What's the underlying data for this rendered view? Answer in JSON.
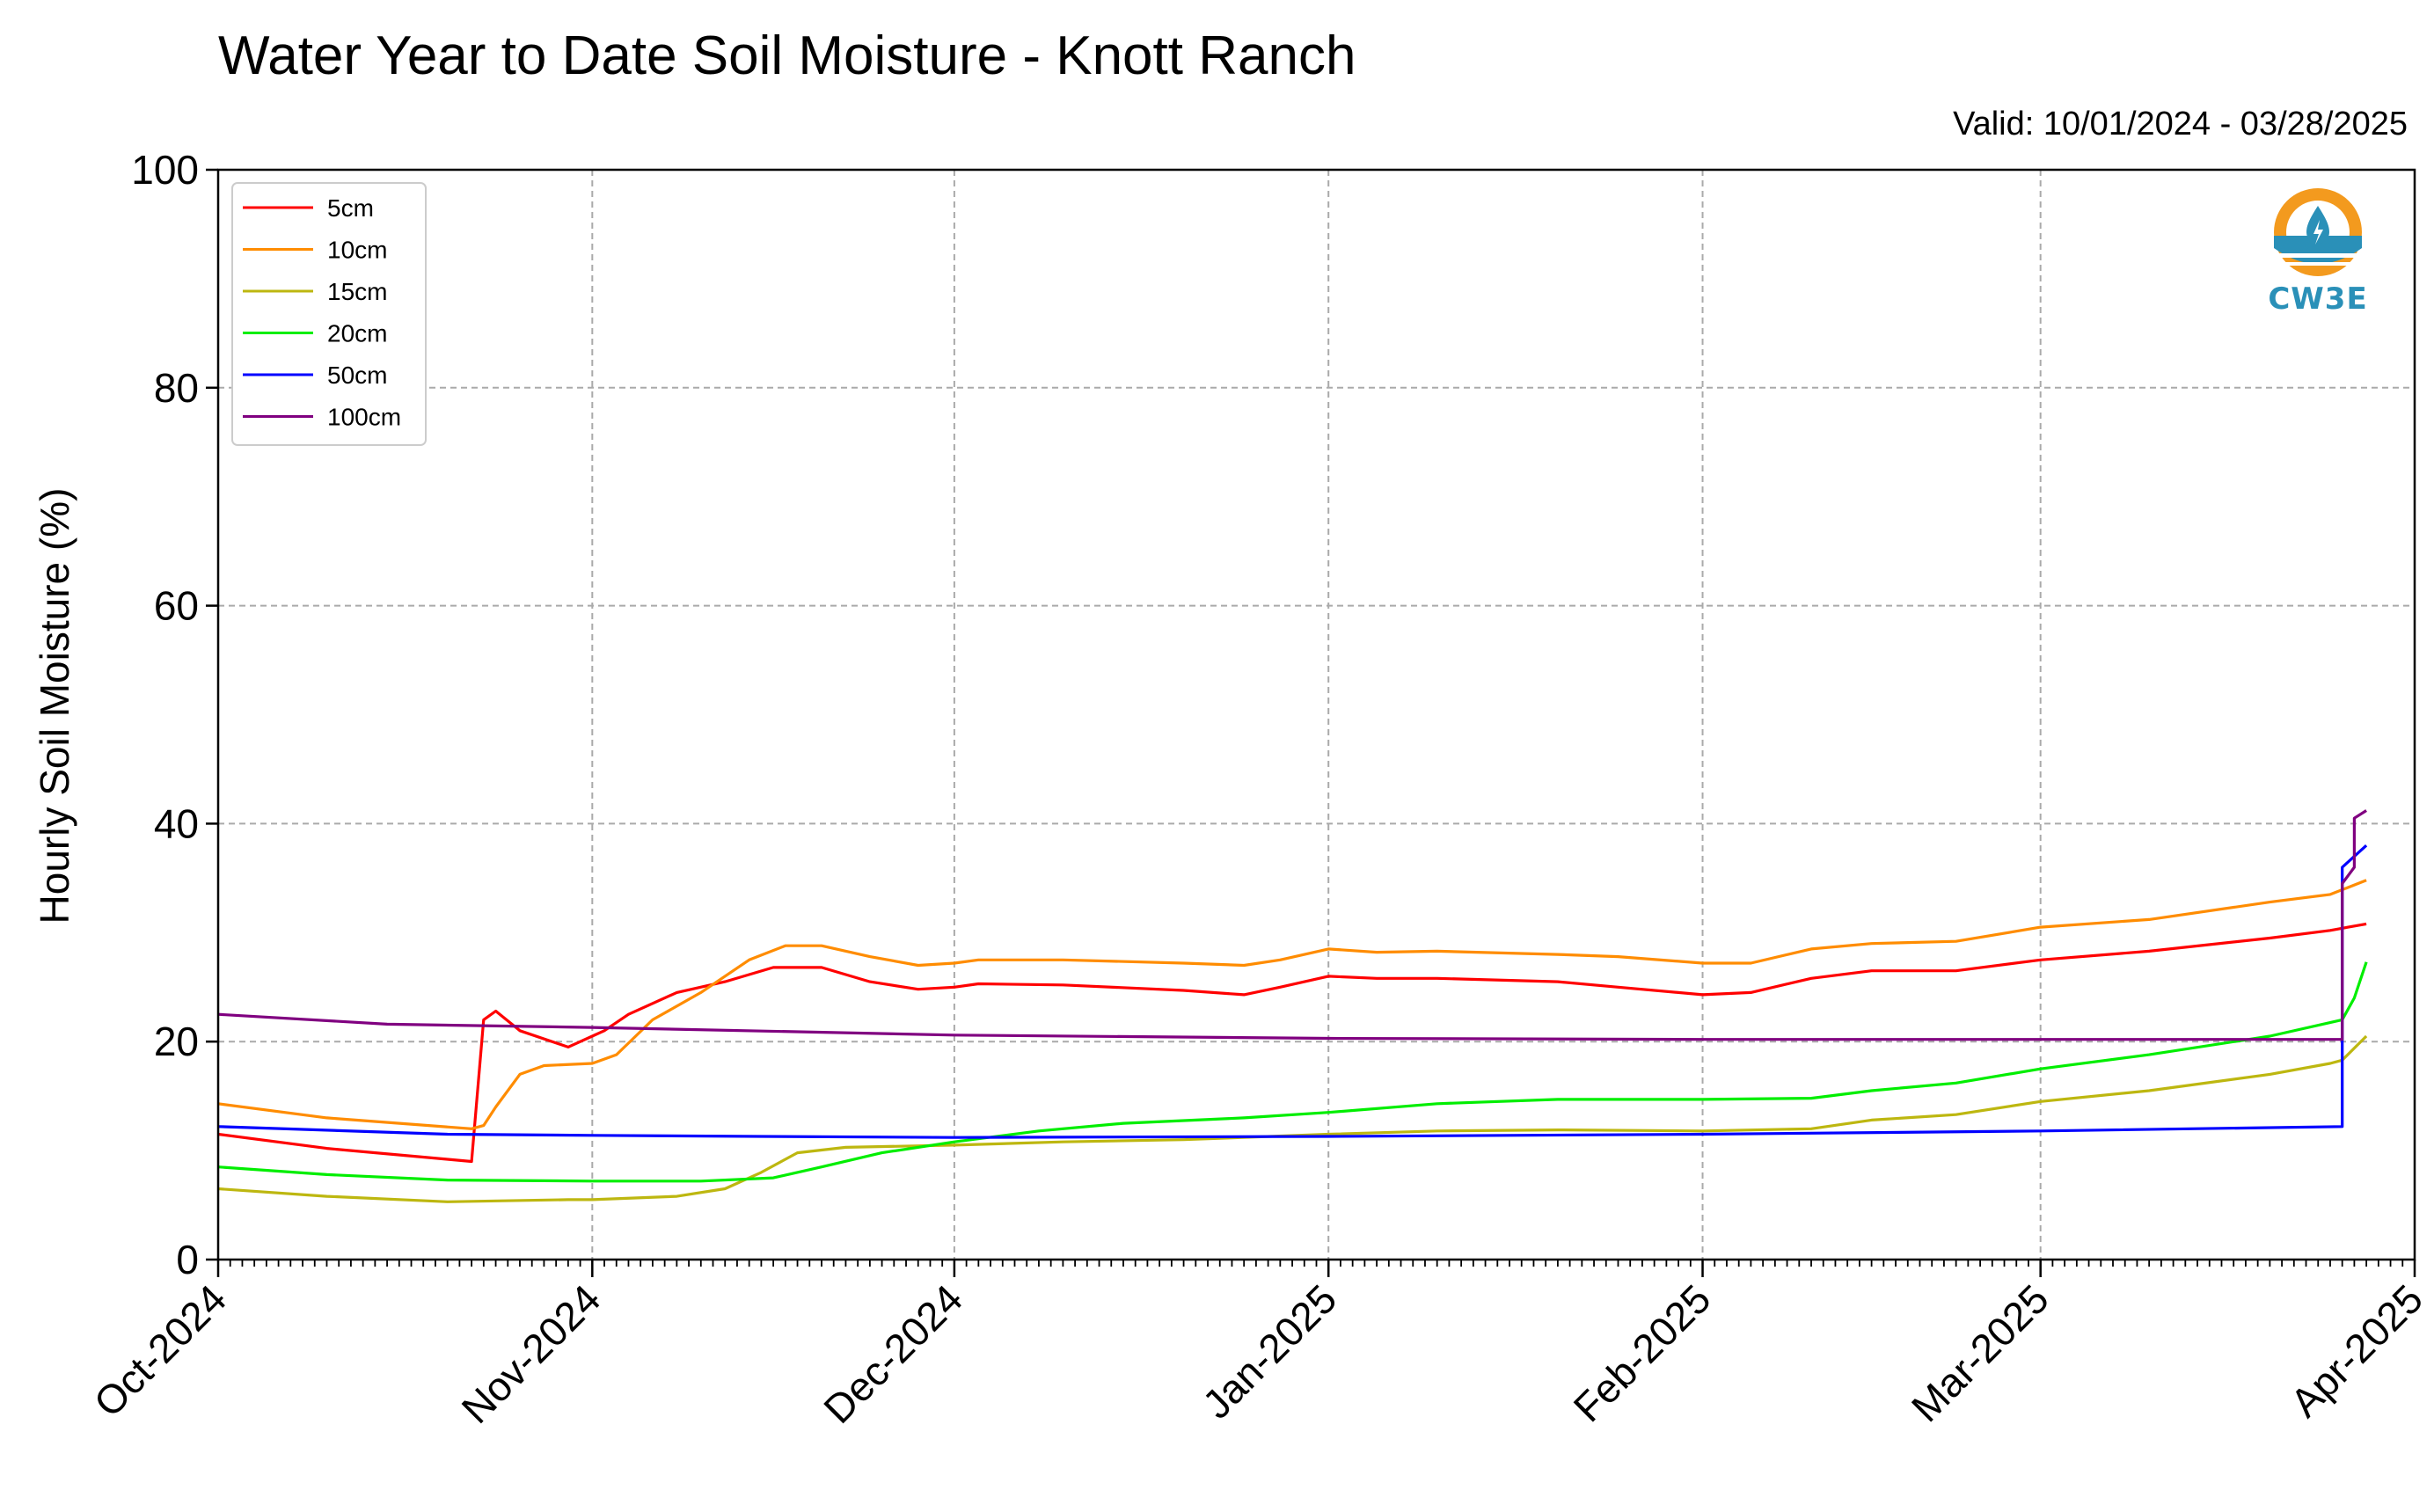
{
  "title": "Water Year to Date Soil Moisture - Knott Ranch",
  "valid_text": "Valid: 10/01/2024 - 03/28/2025",
  "logo": {
    "icon": "cw3e-logo-icon",
    "text": "CW3E",
    "colors": [
      "#f39a1e",
      "#2a90b8"
    ]
  },
  "chart_data": {
    "type": "line",
    "title": "Water Year to Date Soil Moisture - Knott Ranch",
    "xlabel": "",
    "ylabel": "Hourly Soil Moisture (%)",
    "ylim": [
      0,
      100
    ],
    "xlim": [
      "2024-10-01",
      "2025-04-01"
    ],
    "yticks": [
      0,
      20,
      40,
      60,
      80,
      100
    ],
    "xticks": [
      {
        "date": "2024-10-01",
        "label": "Oct-2024"
      },
      {
        "date": "2024-11-01",
        "label": "Nov-2024"
      },
      {
        "date": "2024-12-01",
        "label": "Dec-2024"
      },
      {
        "date": "2025-01-01",
        "label": "Jan-2025"
      },
      {
        "date": "2025-02-01",
        "label": "Feb-2025"
      },
      {
        "date": "2025-03-01",
        "label": "Mar-2025"
      },
      {
        "date": "2025-04-01",
        "label": "Apr-2025"
      }
    ],
    "grid": true,
    "legend_position": "top-left",
    "series": [
      {
        "name": "5cm",
        "color": "#ff0000",
        "points": [
          [
            "2024-10-01",
            11.5
          ],
          [
            "2024-10-10",
            10.2
          ],
          [
            "2024-10-20",
            9.2
          ],
          [
            "2024-10-22",
            9.0
          ],
          [
            "2024-10-23",
            22.0
          ],
          [
            "2024-10-24",
            22.8
          ],
          [
            "2024-10-26",
            21.0
          ],
          [
            "2024-10-30",
            19.5
          ],
          [
            "2024-11-01",
            20.5
          ],
          [
            "2024-11-02",
            21.0
          ],
          [
            "2024-11-04",
            22.5
          ],
          [
            "2024-11-08",
            24.5
          ],
          [
            "2024-11-12",
            25.5
          ],
          [
            "2024-11-16",
            26.8
          ],
          [
            "2024-11-20",
            26.8
          ],
          [
            "2024-11-24",
            25.5
          ],
          [
            "2024-11-28",
            24.8
          ],
          [
            "2024-12-01",
            25.0
          ],
          [
            "2024-12-03",
            25.3
          ],
          [
            "2024-12-10",
            25.2
          ],
          [
            "2024-12-20",
            24.7
          ],
          [
            "2024-12-25",
            24.3
          ],
          [
            "2024-12-28",
            25.0
          ],
          [
            "2025-01-01",
            26.0
          ],
          [
            "2025-01-05",
            25.8
          ],
          [
            "2025-01-10",
            25.8
          ],
          [
            "2025-01-20",
            25.5
          ],
          [
            "2025-01-25",
            25.0
          ],
          [
            "2025-02-01",
            24.3
          ],
          [
            "2025-02-05",
            24.5
          ],
          [
            "2025-02-10",
            25.8
          ],
          [
            "2025-02-15",
            26.5
          ],
          [
            "2025-02-22",
            26.5
          ],
          [
            "2025-03-01",
            27.5
          ],
          [
            "2025-03-10",
            28.3
          ],
          [
            "2025-03-20",
            29.5
          ],
          [
            "2025-03-25",
            30.2
          ],
          [
            "2025-03-28",
            30.8
          ]
        ]
      },
      {
        "name": "10cm",
        "color": "#ff8c00",
        "points": [
          [
            "2024-10-01",
            14.3
          ],
          [
            "2024-10-10",
            13.0
          ],
          [
            "2024-10-22",
            12.0
          ],
          [
            "2024-10-23",
            12.3
          ],
          [
            "2024-10-24",
            14.0
          ],
          [
            "2024-10-26",
            17.0
          ],
          [
            "2024-10-28",
            17.8
          ],
          [
            "2024-11-01",
            18.0
          ],
          [
            "2024-11-03",
            18.8
          ],
          [
            "2024-11-06",
            22.0
          ],
          [
            "2024-11-10",
            24.5
          ],
          [
            "2024-11-14",
            27.5
          ],
          [
            "2024-11-17",
            28.8
          ],
          [
            "2024-11-20",
            28.8
          ],
          [
            "2024-11-24",
            27.8
          ],
          [
            "2024-11-28",
            27.0
          ],
          [
            "2024-12-01",
            27.2
          ],
          [
            "2024-12-03",
            27.5
          ],
          [
            "2024-12-10",
            27.5
          ],
          [
            "2024-12-20",
            27.2
          ],
          [
            "2024-12-25",
            27.0
          ],
          [
            "2024-12-28",
            27.5
          ],
          [
            "2025-01-01",
            28.5
          ],
          [
            "2025-01-05",
            28.2
          ],
          [
            "2025-01-10",
            28.3
          ],
          [
            "2025-01-20",
            28.0
          ],
          [
            "2025-01-25",
            27.8
          ],
          [
            "2025-02-01",
            27.2
          ],
          [
            "2025-02-05",
            27.2
          ],
          [
            "2025-02-10",
            28.5
          ],
          [
            "2025-02-15",
            29.0
          ],
          [
            "2025-02-22",
            29.2
          ],
          [
            "2025-03-01",
            30.5
          ],
          [
            "2025-03-10",
            31.2
          ],
          [
            "2025-03-20",
            32.8
          ],
          [
            "2025-03-25",
            33.5
          ],
          [
            "2025-03-28",
            34.8
          ]
        ]
      },
      {
        "name": "15cm",
        "color": "#bdb710",
        "points": [
          [
            "2024-10-01",
            6.5
          ],
          [
            "2024-10-10",
            5.8
          ],
          [
            "2024-10-20",
            5.3
          ],
          [
            "2024-10-30",
            5.5
          ],
          [
            "2024-11-01",
            5.5
          ],
          [
            "2024-11-08",
            5.8
          ],
          [
            "2024-11-12",
            6.5
          ],
          [
            "2024-11-15",
            8.0
          ],
          [
            "2024-11-18",
            9.8
          ],
          [
            "2024-11-22",
            10.3
          ],
          [
            "2024-12-01",
            10.5
          ],
          [
            "2024-12-10",
            10.8
          ],
          [
            "2024-12-20",
            11.0
          ],
          [
            "2025-01-01",
            11.5
          ],
          [
            "2025-01-10",
            11.8
          ],
          [
            "2025-01-20",
            11.9
          ],
          [
            "2025-02-01",
            11.8
          ],
          [
            "2025-02-10",
            12.0
          ],
          [
            "2025-02-15",
            12.8
          ],
          [
            "2025-02-22",
            13.3
          ],
          [
            "2025-03-01",
            14.5
          ],
          [
            "2025-03-10",
            15.5
          ],
          [
            "2025-03-20",
            17.0
          ],
          [
            "2025-03-25",
            18.0
          ],
          [
            "2025-03-26",
            18.3
          ],
          [
            "2025-03-28",
            20.5
          ]
        ]
      },
      {
        "name": "20cm",
        "color": "#00ee00",
        "points": [
          [
            "2024-10-01",
            8.5
          ],
          [
            "2024-10-10",
            7.8
          ],
          [
            "2024-10-20",
            7.3
          ],
          [
            "2024-11-01",
            7.2
          ],
          [
            "2024-11-10",
            7.2
          ],
          [
            "2024-11-16",
            7.5
          ],
          [
            "2024-11-20",
            8.5
          ],
          [
            "2024-11-25",
            9.8
          ],
          [
            "2024-12-01",
            10.8
          ],
          [
            "2024-12-08",
            11.8
          ],
          [
            "2024-12-15",
            12.5
          ],
          [
            "2024-12-25",
            13.0
          ],
          [
            "2025-01-01",
            13.5
          ],
          [
            "2025-01-10",
            14.3
          ],
          [
            "2025-01-20",
            14.7
          ],
          [
            "2025-02-01",
            14.7
          ],
          [
            "2025-02-10",
            14.8
          ],
          [
            "2025-02-15",
            15.5
          ],
          [
            "2025-02-22",
            16.2
          ],
          [
            "2025-03-01",
            17.5
          ],
          [
            "2025-03-10",
            18.8
          ],
          [
            "2025-03-20",
            20.5
          ],
          [
            "2025-03-26",
            22.0
          ],
          [
            "2025-03-27",
            24.0
          ],
          [
            "2025-03-28",
            27.3
          ]
        ]
      },
      {
        "name": "50cm",
        "color": "#0000ff",
        "points": [
          [
            "2024-10-01",
            12.2
          ],
          [
            "2024-10-20",
            11.5
          ],
          [
            "2024-11-01",
            11.4
          ],
          [
            "2024-11-15",
            11.3
          ],
          [
            "2024-12-01",
            11.2
          ],
          [
            "2025-01-01",
            11.3
          ],
          [
            "2025-02-01",
            11.5
          ],
          [
            "2025-03-01",
            11.8
          ],
          [
            "2025-03-26",
            12.2
          ],
          [
            "2025-03-26",
            34.5
          ],
          [
            "2025-03-26",
            36.0
          ],
          [
            "2025-03-27",
            37.0
          ],
          [
            "2025-03-28",
            38.0
          ]
        ]
      },
      {
        "name": "100cm",
        "color": "#800080",
        "points": [
          [
            "2024-10-01",
            22.5
          ],
          [
            "2024-10-15",
            21.6
          ],
          [
            "2024-11-01",
            21.3
          ],
          [
            "2024-12-01",
            20.6
          ],
          [
            "2025-01-01",
            20.3
          ],
          [
            "2025-02-01",
            20.2
          ],
          [
            "2025-03-01",
            20.2
          ],
          [
            "2025-03-26",
            20.2
          ],
          [
            "2025-03-26",
            34.5
          ],
          [
            "2025-03-27",
            36.0
          ],
          [
            "2025-03-27",
            40.5
          ],
          [
            "2025-03-28",
            41.2
          ]
        ]
      }
    ]
  }
}
